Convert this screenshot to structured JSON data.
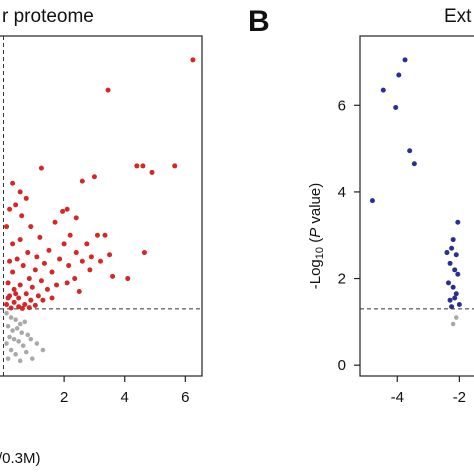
{
  "chart_data": [
    {
      "type": "scatter",
      "panel": "",
      "title": "r proteome",
      "xlabel": "/0.3M)",
      "ylabel": "",
      "x_ticks": [
        "2",
        "4",
        "6"
      ],
      "xlim": [
        -0.05,
        6.55
      ],
      "ylim": [
        -0.25,
        7.6
      ],
      "threshold_x": 0,
      "threshold_y": 1.3,
      "colors": {
        "significant": "#d62728",
        "nonsignificant": "#a9a9a9",
        "threshold": "#333333"
      },
      "series": [
        {
          "points": [
            [
              6.25,
              7.05
            ],
            [
              3.45,
              6.35
            ],
            [
              4.6,
              4.6
            ],
            [
              4.9,
              4.45
            ],
            [
              4.4,
              4.6
            ],
            [
              5.65,
              4.6
            ],
            [
              3.0,
              4.35
            ],
            [
              1.25,
              4.55
            ],
            [
              2.6,
              4.25
            ],
            [
              0.3,
              4.2
            ],
            [
              0.55,
              4.0
            ],
            [
              0.75,
              3.85
            ],
            [
              0.4,
              3.7
            ],
            [
              2.1,
              3.6
            ],
            [
              1.95,
              3.55
            ],
            [
              2.4,
              3.4
            ],
            [
              0.2,
              3.6
            ],
            [
              0.6,
              3.45
            ],
            [
              1.7,
              3.3
            ],
            [
              0.9,
              3.2
            ],
            [
              0.1,
              3.2
            ],
            [
              2.2,
              3.0
            ],
            [
              3.1,
              3.0
            ],
            [
              3.35,
              3.0
            ],
            [
              1.2,
              2.95
            ],
            [
              0.55,
              2.9
            ],
            [
              2.75,
              2.8
            ],
            [
              2.0,
              2.8
            ],
            [
              0.3,
              2.8
            ],
            [
              4.65,
              2.6
            ],
            [
              1.5,
              2.65
            ],
            [
              0.8,
              2.6
            ],
            [
              2.4,
              2.6
            ],
            [
              3.5,
              2.55
            ],
            [
              2.9,
              2.5
            ],
            [
              1.1,
              2.5
            ],
            [
              0.45,
              2.45
            ],
            [
              1.85,
              2.45
            ],
            [
              2.6,
              2.4
            ],
            [
              0.2,
              2.4
            ],
            [
              3.2,
              2.4
            ],
            [
              1.35,
              2.35
            ],
            [
              0.65,
              2.3
            ],
            [
              2.15,
              2.3
            ],
            [
              1.05,
              2.2
            ],
            [
              2.85,
              2.2
            ],
            [
              0.3,
              2.15
            ],
            [
              1.6,
              2.15
            ],
            [
              4.1,
              2.0
            ],
            [
              3.6,
              2.05
            ],
            [
              0.85,
              2.0
            ],
            [
              2.35,
              2.0
            ],
            [
              1.25,
              1.95
            ],
            [
              0.15,
              1.9
            ],
            [
              2.1,
              1.9
            ],
            [
              0.55,
              1.85
            ],
            [
              1.75,
              1.85
            ],
            [
              0.95,
              1.8
            ],
            [
              1.45,
              1.75
            ],
            [
              0.35,
              1.75
            ],
            [
              2.5,
              1.7
            ],
            [
              0.75,
              1.65
            ],
            [
              1.15,
              1.6
            ],
            [
              0.2,
              1.6
            ],
            [
              0.5,
              1.55
            ],
            [
              0.9,
              1.5
            ],
            [
              1.3,
              1.5
            ],
            [
              0.35,
              1.45
            ],
            [
              0.7,
              1.4
            ],
            [
              0.1,
              1.4
            ],
            [
              1.05,
              1.38
            ],
            [
              0.5,
              1.35
            ],
            [
              0.85,
              1.33
            ],
            [
              0.25,
              1.32
            ],
            [
              0.62,
              1.31
            ],
            [
              0.15,
              1.55
            ],
            [
              0.4,
              1.65
            ],
            [
              1.6,
              1.55
            ]
          ]
        },
        {
          "points": [
            [
              0.1,
              1.2
            ],
            [
              0.25,
              1.1
            ],
            [
              0.4,
              1.05
            ],
            [
              0.55,
              0.95
            ],
            [
              0.7,
              1.0
            ],
            [
              0.15,
              0.9
            ],
            [
              0.3,
              0.8
            ],
            [
              0.45,
              0.85
            ],
            [
              0.6,
              0.75
            ],
            [
              0.8,
              0.7
            ],
            [
              0.2,
              0.65
            ],
            [
              0.35,
              0.6
            ],
            [
              0.5,
              0.55
            ],
            [
              0.9,
              0.6
            ],
            [
              0.1,
              0.5
            ],
            [
              0.65,
              0.45
            ],
            [
              1.1,
              0.5
            ],
            [
              0.25,
              0.35
            ],
            [
              0.75,
              0.3
            ],
            [
              0.4,
              0.25
            ],
            [
              1.3,
              0.35
            ],
            [
              0.15,
              0.15
            ],
            [
              0.55,
              0.1
            ],
            [
              0.95,
              0.15
            ]
          ]
        }
      ]
    },
    {
      "type": "scatter",
      "panel": "B",
      "title": "Ext",
      "xlabel": "",
      "ylabel": "-Log10 (P value)",
      "ylabel_parts": {
        "pre": "-Log",
        "sub": "10",
        "mid": " (",
        "ital": "P",
        "post": " value)"
      },
      "x_ticks": [
        "-4",
        "-2"
      ],
      "y_ticks": [
        "0",
        "2",
        "4",
        "6"
      ],
      "xlim": [
        -5.2,
        -1.4
      ],
      "ylim": [
        -0.25,
        7.6
      ],
      "threshold_y": 1.3,
      "colors": {
        "significant": "#2b2f8f",
        "nonsignificant": "#a9a9a9",
        "threshold": "#333333"
      },
      "series": [
        {
          "points": [
            [
              -3.75,
              7.05
            ],
            [
              -3.95,
              6.7
            ],
            [
              -4.45,
              6.35
            ],
            [
              -4.05,
              5.95
            ],
            [
              -3.6,
              4.95
            ],
            [
              -3.45,
              4.65
            ],
            [
              -4.8,
              3.8
            ],
            [
              -2.05,
              3.3
            ],
            [
              -2.2,
              2.9
            ],
            [
              -2.25,
              2.7
            ],
            [
              -2.1,
              2.55
            ],
            [
              -2.4,
              2.6
            ],
            [
              -2.3,
              2.35
            ],
            [
              -2.15,
              2.2
            ],
            [
              -2.05,
              2.1
            ],
            [
              -2.35,
              1.9
            ],
            [
              -2.2,
              1.8
            ],
            [
              -2.1,
              1.65
            ],
            [
              -2.3,
              1.5
            ],
            [
              -2.0,
              1.4
            ],
            [
              -2.25,
              1.35
            ],
            [
              -2.15,
              1.55
            ]
          ]
        },
        {
          "points": [
            [
              -2.2,
              0.95
            ],
            [
              -2.1,
              1.1
            ]
          ]
        }
      ]
    }
  ]
}
